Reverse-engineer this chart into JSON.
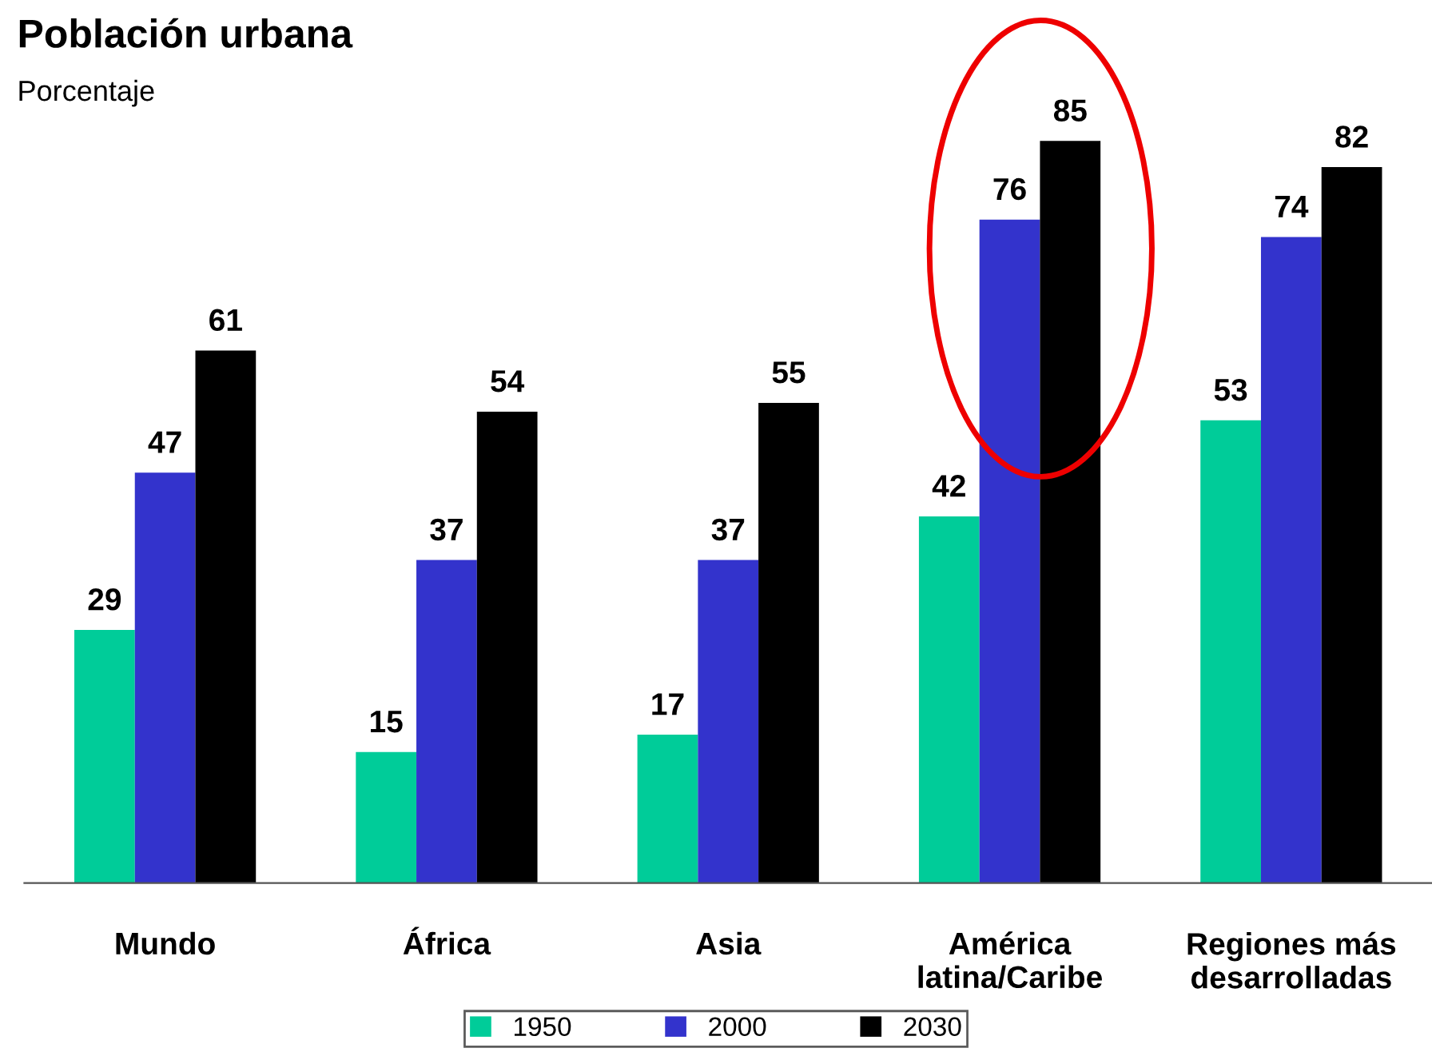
{
  "chart_data": {
    "type": "bar",
    "title": "Población urbana",
    "subtitle": "Porcentaje",
    "categories": [
      "Mundo",
      "África",
      "Asia",
      "América\nlatina/Caribe",
      "Regiones más\ndesarrolladas"
    ],
    "series": [
      {
        "name": "1950",
        "color": "#00cc99",
        "values": [
          29,
          15,
          17,
          42,
          53
        ]
      },
      {
        "name": "2000",
        "color": "#3333cc",
        "values": [
          47,
          37,
          37,
          76,
          74
        ]
      },
      {
        "name": "2030",
        "color": "#000000",
        "values": [
          61,
          54,
          55,
          85,
          82
        ]
      }
    ],
    "data_labels": true,
    "tick_labels": "x",
    "legend": "bottom",
    "grid": false
  }
}
